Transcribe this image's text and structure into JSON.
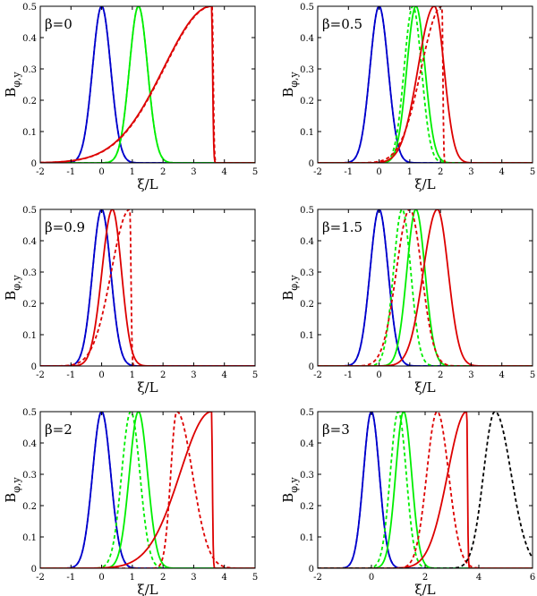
{
  "figure": {
    "xlabel": "ξ/L",
    "ylabel": "B",
    "ylabel_sub": "φ,y",
    "colors": {
      "blue": "#0000cc",
      "green": "#00ee00",
      "red": "#dd0000",
      "black": "#000000"
    }
  },
  "chart_data": [
    {
      "type": "line",
      "label": "β=0",
      "xlim": [
        -2,
        5
      ],
      "ylim": [
        0,
        0.5
      ],
      "xticks": [
        -2,
        -1,
        0,
        1,
        2,
        3,
        4,
        5
      ],
      "yticks": [
        0,
        0.1,
        0.2,
        0.3,
        0.4,
        0.5
      ],
      "series": [
        {
          "name": "blue",
          "color": "#0000cc",
          "style": "solid",
          "kind": "gauss",
          "center": 0,
          "width": 0.42
        },
        {
          "name": "blue-dashed",
          "color": "#0000cc",
          "style": "dashed",
          "kind": "gauss",
          "center": 0,
          "width": 0.42
        },
        {
          "name": "green",
          "color": "#00ee00",
          "style": "solid",
          "kind": "gauss",
          "center": 1.2,
          "width": 0.42
        },
        {
          "name": "green-dashed",
          "color": "#00ee00",
          "style": "dashed",
          "kind": "gauss",
          "center": 1.2,
          "width": 0.42
        },
        {
          "name": "red",
          "color": "#dd0000",
          "style": "solid",
          "kind": "shock",
          "peak": 3.58,
          "rise": 2.2,
          "fall": 0.05
        },
        {
          "name": "red-dashed",
          "color": "#dd0000",
          "style": "dashed",
          "kind": "shock",
          "peak": 3.6,
          "rise": 2.2,
          "fall": 0.05
        }
      ]
    },
    {
      "type": "line",
      "label": "β=0.5",
      "xlim": [
        -2,
        5
      ],
      "ylim": [
        0,
        0.5
      ],
      "xticks": [
        -2,
        -1,
        0,
        1,
        2,
        3,
        4,
        5
      ],
      "yticks": [
        0,
        0.1,
        0.2,
        0.3,
        0.4,
        0.5
      ],
      "series": [
        {
          "name": "blue",
          "color": "#0000cc",
          "style": "solid",
          "kind": "gauss",
          "center": 0,
          "width": 0.42
        },
        {
          "name": "blue-dashed",
          "color": "#0000cc",
          "style": "dashed",
          "kind": "gauss",
          "center": 0,
          "width": 0.42
        },
        {
          "name": "green",
          "color": "#00ee00",
          "style": "solid",
          "kind": "gauss",
          "center": 1.2,
          "width": 0.42
        },
        {
          "name": "green-dashed",
          "color": "#00ee00",
          "style": "dashed",
          "kind": "gauss",
          "center": 1.1,
          "width": 0.4
        },
        {
          "name": "red",
          "color": "#dd0000",
          "style": "solid",
          "kind": "shock",
          "peak": 1.8,
          "rise": 0.75,
          "fall": 0.45
        },
        {
          "name": "red-dashed",
          "color": "#dd0000",
          "style": "dashed",
          "kind": "shock",
          "peak": 2.05,
          "rise": 0.95,
          "fall": 0.04
        }
      ]
    },
    {
      "type": "line",
      "label": "β=0.9",
      "xlim": [
        -2,
        5
      ],
      "ylim": [
        0,
        0.5
      ],
      "xticks": [
        -2,
        -1,
        0,
        1,
        2,
        3,
        4,
        5
      ],
      "yticks": [
        0,
        0.1,
        0.2,
        0.3,
        0.4,
        0.5
      ],
      "series": [
        {
          "name": "blue",
          "color": "#0000cc",
          "style": "solid",
          "kind": "gauss",
          "center": 0,
          "width": 0.42
        },
        {
          "name": "blue-dashed",
          "color": "#0000cc",
          "style": "dashed",
          "kind": "gauss",
          "center": 0,
          "width": 0.42
        },
        {
          "name": "red",
          "color": "#dd0000",
          "style": "solid",
          "kind": "shock",
          "peak": 0.35,
          "rise": 0.48,
          "fall": 0.42
        },
        {
          "name": "red-dashed",
          "color": "#dd0000",
          "style": "dashed",
          "kind": "shock",
          "peak": 0.92,
          "rise": 0.85,
          "fall": 0.05
        }
      ]
    },
    {
      "type": "line",
      "label": "β=1.5",
      "xlim": [
        -2,
        5
      ],
      "ylim": [
        0,
        0.5
      ],
      "xticks": [
        -2,
        -1,
        0,
        1,
        2,
        3,
        4,
        5
      ],
      "yticks": [
        0,
        0.1,
        0.2,
        0.3,
        0.4,
        0.5
      ],
      "series": [
        {
          "name": "blue",
          "color": "#0000cc",
          "style": "solid",
          "kind": "gauss",
          "center": 0,
          "width": 0.42
        },
        {
          "name": "blue-dashed",
          "color": "#0000cc",
          "style": "dashed",
          "kind": "gauss",
          "center": 0,
          "width": 0.42
        },
        {
          "name": "green",
          "color": "#00ee00",
          "style": "solid",
          "kind": "gauss",
          "center": 1.2,
          "width": 0.42
        },
        {
          "name": "green-dashed",
          "color": "#00ee00",
          "style": "dashed",
          "kind": "gauss",
          "center": 0.75,
          "width": 0.4
        },
        {
          "name": "red",
          "color": "#dd0000",
          "style": "solid",
          "kind": "shock",
          "peak": 1.9,
          "rise": 0.65,
          "fall": 0.5
        },
        {
          "name": "red-dashed",
          "color": "#dd0000",
          "style": "dashed",
          "kind": "shock",
          "peak": 1.0,
          "rise": 0.62,
          "fall": 0.55
        }
      ]
    },
    {
      "type": "line",
      "label": "β=2",
      "xlim": [
        -2,
        5
      ],
      "ylim": [
        0,
        0.5
      ],
      "xticks": [
        -2,
        -1,
        0,
        1,
        2,
        3,
        4,
        5
      ],
      "yticks": [
        0,
        0.1,
        0.2,
        0.3,
        0.4,
        0.5
      ],
      "series": [
        {
          "name": "blue",
          "color": "#0000cc",
          "style": "solid",
          "kind": "gauss",
          "center": 0,
          "width": 0.42
        },
        {
          "name": "blue-dashed",
          "color": "#0000cc",
          "style": "dashed",
          "kind": "gauss",
          "center": 0,
          "width": 0.42
        },
        {
          "name": "green",
          "color": "#00ee00",
          "style": "solid",
          "kind": "gauss",
          "center": 1.2,
          "width": 0.42
        },
        {
          "name": "green-dashed",
          "color": "#00ee00",
          "style": "dashed",
          "kind": "gauss",
          "center": 0.95,
          "width": 0.42
        },
        {
          "name": "red",
          "color": "#dd0000",
          "style": "solid",
          "kind": "shock",
          "peak": 3.58,
          "rise": 1.45,
          "fall": 0.04
        },
        {
          "name": "red-dashed",
          "color": "#dd0000",
          "style": "dashed",
          "kind": "shock",
          "peak": 2.45,
          "rise": 0.28,
          "fall": 0.72
        }
      ]
    },
    {
      "type": "line",
      "label": "β=3",
      "xlim": [
        -2,
        6
      ],
      "ylim": [
        0,
        0.5
      ],
      "xticks": [
        -2,
        0,
        2,
        4,
        6
      ],
      "yticks": [
        0,
        0.1,
        0.2,
        0.3,
        0.4,
        0.5
      ],
      "series": [
        {
          "name": "blue",
          "color": "#0000cc",
          "style": "solid",
          "kind": "gauss",
          "center": 0,
          "width": 0.42
        },
        {
          "name": "blue-dashed",
          "color": "#0000cc",
          "style": "dashed",
          "kind": "gauss",
          "center": 0,
          "width": 0.42
        },
        {
          "name": "green",
          "color": "#00ee00",
          "style": "solid",
          "kind": "gauss",
          "center": 1.2,
          "width": 0.42
        },
        {
          "name": "green-dashed",
          "color": "#00ee00",
          "style": "dashed",
          "kind": "gauss",
          "center": 1.0,
          "width": 0.42
        },
        {
          "name": "red",
          "color": "#dd0000",
          "style": "solid",
          "kind": "shock",
          "peak": 3.55,
          "rise": 1.0,
          "fall": 0.04
        },
        {
          "name": "red-dashed",
          "color": "#dd0000",
          "style": "dashed",
          "kind": "shock",
          "peak": 2.45,
          "rise": 0.55,
          "fall": 0.6
        },
        {
          "name": "black-dashed",
          "color": "#000000",
          "style": "dashed",
          "kind": "shock",
          "peak": 4.6,
          "rise": 0.6,
          "fall": 0.85
        }
      ]
    }
  ]
}
